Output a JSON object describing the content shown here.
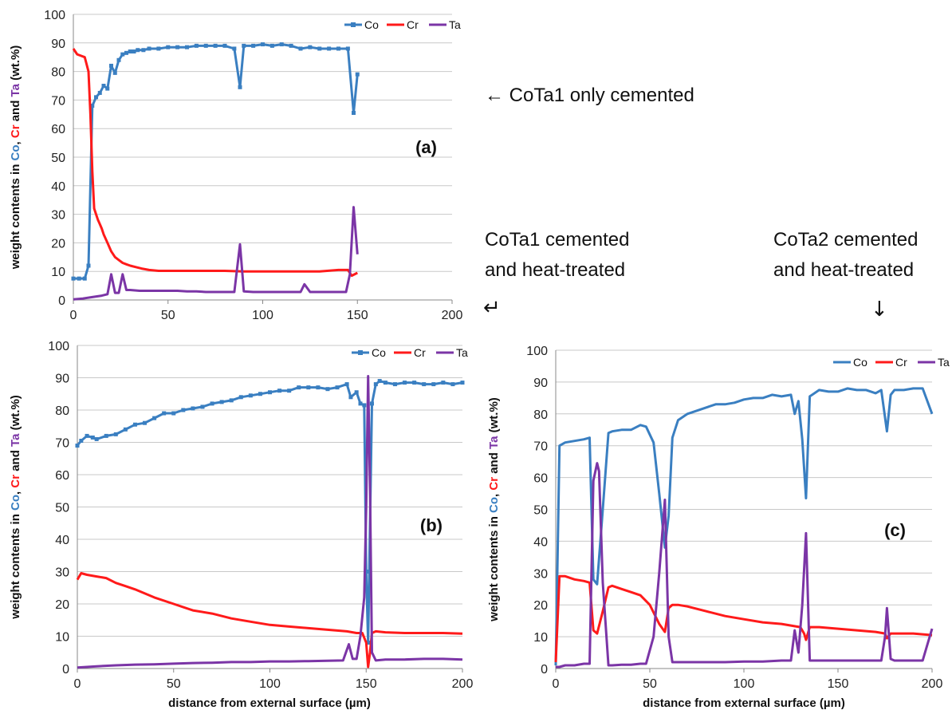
{
  "annotations": {
    "a": "← CoTa1 only cemented",
    "b_line1": "CoTa1 cemented",
    "b_line2": "and heat-treated",
    "b_arrow": "↵",
    "c_line1": "CoTa2 cemented",
    "c_line2": "and heat-treated",
    "c_arrow": "↓"
  },
  "colors": {
    "Co": "#3a7fc1",
    "Cr": "#ff1a1a",
    "Ta": "#7b35a6",
    "grid": "#c8c8c8",
    "axis": "#888888"
  },
  "chart_data": [
    {
      "type": "line",
      "panel_label": "(a)",
      "ylabel_parts": [
        {
          "text": "weight contents in ",
          "color": "#111111"
        },
        {
          "text": "Co",
          "color": "#3a7fc1"
        },
        {
          "text": ", ",
          "color": "#111111"
        },
        {
          "text": "Cr",
          "color": "#ff1a1a"
        },
        {
          "text": " and ",
          "color": "#111111"
        },
        {
          "text": "Ta",
          "color": "#7b35a6"
        },
        {
          "text": " (wt.%)",
          "color": "#111111"
        }
      ],
      "xlabel": "",
      "xlim": [
        0,
        200
      ],
      "ylim": [
        0,
        100
      ],
      "xticks": [
        "0",
        "50",
        "100",
        "150",
        "200"
      ],
      "yticks": [
        "0",
        "10",
        "20",
        "30",
        "40",
        "50",
        "60",
        "70",
        "80",
        "90",
        "100"
      ],
      "grid": true,
      "legend": "top-right",
      "series": [
        {
          "name": "Co",
          "markers": true,
          "x": [
            0,
            3,
            6,
            8,
            10,
            12,
            14,
            16,
            18,
            20,
            22,
            24,
            26,
            28,
            30,
            32,
            34,
            37,
            40,
            45,
            50,
            55,
            60,
            65,
            70,
            75,
            80,
            85,
            88,
            90,
            95,
            100,
            105,
            110,
            115,
            120,
            125,
            130,
            135,
            140,
            145,
            148,
            150
          ],
          "y": [
            7.5,
            7.5,
            7.5,
            12,
            68,
            71,
            72.5,
            75,
            74,
            82,
            79.5,
            84,
            86,
            86.5,
            87,
            87,
            87.5,
            87.5,
            88,
            88,
            88.5,
            88.5,
            88.5,
            89,
            89,
            89,
            89,
            88,
            74.5,
            89,
            89,
            89.5,
            89,
            89.5,
            89,
            88,
            88.5,
            88,
            88,
            88,
            88,
            65.5,
            79
          ]
        },
        {
          "name": "Cr",
          "markers": false,
          "x": [
            0,
            2,
            4,
            6,
            8,
            9,
            10,
            11,
            12,
            13,
            14,
            15,
            16,
            18,
            20,
            22,
            24,
            26,
            28,
            30,
            33,
            36,
            40,
            45,
            50,
            60,
            70,
            80,
            90,
            100,
            110,
            120,
            130,
            140,
            145,
            147,
            150
          ],
          "y": [
            88,
            86,
            85.5,
            85,
            80,
            65,
            45,
            32,
            30,
            28,
            26.5,
            25,
            23,
            20,
            17,
            15,
            14,
            13,
            12.5,
            12,
            11.5,
            11,
            10.5,
            10.2,
            10.2,
            10.2,
            10.2,
            10.2,
            10,
            10,
            10,
            10,
            10,
            10.5,
            10.5,
            8.5,
            9.5
          ]
        },
        {
          "name": "Ta",
          "markers": false,
          "x": [
            0,
            5,
            10,
            15,
            18,
            20,
            22,
            24,
            26,
            28,
            30,
            35,
            40,
            45,
            50,
            55,
            60,
            65,
            70,
            75,
            80,
            85,
            88,
            90,
            95,
            100,
            105,
            110,
            115,
            120,
            122,
            125,
            130,
            135,
            140,
            144,
            146,
            148,
            150
          ],
          "y": [
            0.2,
            0.5,
            1,
            1.5,
            2,
            9,
            2.5,
            2.5,
            9,
            3.5,
            3.5,
            3.2,
            3.2,
            3.2,
            3.2,
            3.2,
            3,
            3,
            2.8,
            2.8,
            2.8,
            2.8,
            19.5,
            3,
            2.8,
            2.8,
            2.8,
            2.8,
            2.8,
            2.8,
            5.5,
            2.8,
            2.8,
            2.8,
            2.8,
            2.8,
            9,
            32.5,
            16
          ]
        }
      ]
    },
    {
      "type": "line",
      "panel_label": "(b)",
      "ylabel_parts": [
        {
          "text": "weight contents in ",
          "color": "#111111"
        },
        {
          "text": "Co",
          "color": "#3a7fc1"
        },
        {
          "text": ", ",
          "color": "#111111"
        },
        {
          "text": "Cr",
          "color": "#ff1a1a"
        },
        {
          "text": " and ",
          "color": "#111111"
        },
        {
          "text": "Ta",
          "color": "#7b35a6"
        },
        {
          "text": " (wt.%)",
          "color": "#111111"
        }
      ],
      "xlabel": "distance from external surface (µm)",
      "xlim": [
        0,
        200
      ],
      "ylim": [
        0,
        100
      ],
      "xticks": [
        "0",
        "50",
        "100",
        "150",
        "200"
      ],
      "yticks": [
        "0",
        "10",
        "20",
        "30",
        "40",
        "50",
        "60",
        "70",
        "80",
        "90",
        "100"
      ],
      "grid": true,
      "legend": "top-right",
      "series": [
        {
          "name": "Co",
          "markers": true,
          "x": [
            0,
            2,
            5,
            8,
            10,
            15,
            20,
            25,
            30,
            35,
            40,
            45,
            50,
            55,
            60,
            65,
            70,
            75,
            80,
            85,
            90,
            95,
            100,
            105,
            110,
            115,
            120,
            125,
            130,
            135,
            140,
            142,
            145,
            147,
            149,
            150,
            151,
            153,
            155,
            157,
            160,
            165,
            170,
            175,
            180,
            185,
            190,
            195,
            200
          ],
          "y": [
            69,
            70.5,
            72,
            71.5,
            71,
            72,
            72.5,
            74,
            75.5,
            76,
            77.5,
            79,
            79,
            80,
            80.5,
            81,
            82,
            82.5,
            83,
            84,
            84.5,
            85,
            85.5,
            86,
            86,
            87,
            87,
            87,
            86.5,
            87,
            88,
            84,
            85.5,
            82,
            81.5,
            30,
            8,
            82,
            88,
            89,
            88.5,
            88,
            88.5,
            88.5,
            88,
            88,
            88.5,
            88,
            88.5
          ]
        },
        {
          "name": "Cr",
          "markers": false,
          "x": [
            0,
            2,
            5,
            10,
            15,
            20,
            25,
            30,
            40,
            50,
            60,
            70,
            80,
            90,
            100,
            110,
            120,
            130,
            140,
            145,
            148,
            150,
            151,
            152,
            153,
            155,
            160,
            170,
            180,
            190,
            200
          ],
          "y": [
            27.5,
            29.5,
            29,
            28.5,
            28,
            26.5,
            25.5,
            24.5,
            22,
            20,
            18,
            17,
            15.5,
            14.5,
            13.5,
            13,
            12.5,
            12,
            11.5,
            11,
            11,
            8,
            0.5,
            5,
            11,
            11.5,
            11.2,
            11,
            11,
            11,
            10.8
          ]
        },
        {
          "name": "Ta",
          "markers": false,
          "x": [
            0,
            5,
            10,
            20,
            30,
            40,
            50,
            60,
            70,
            80,
            90,
            100,
            110,
            120,
            130,
            138,
            141,
            143,
            145,
            147,
            149,
            150,
            151,
            152,
            153,
            155,
            160,
            170,
            180,
            190,
            200
          ],
          "y": [
            0.3,
            0.5,
            0.7,
            1,
            1.2,
            1.3,
            1.5,
            1.7,
            1.8,
            2,
            2,
            2.2,
            2.2,
            2.3,
            2.4,
            2.5,
            7.5,
            3,
            3,
            10,
            22,
            50,
            90.5,
            55,
            5,
            2.5,
            2.8,
            2.8,
            3,
            3,
            2.8
          ]
        }
      ]
    },
    {
      "type": "line",
      "panel_label": "(c)",
      "ylabel_parts": [
        {
          "text": "weight contents in ",
          "color": "#111111"
        },
        {
          "text": "Co",
          "color": "#3a7fc1"
        },
        {
          "text": ", ",
          "color": "#111111"
        },
        {
          "text": "Cr",
          "color": "#ff1a1a"
        },
        {
          "text": " and ",
          "color": "#111111"
        },
        {
          "text": "Ta",
          "color": "#7b35a6"
        },
        {
          "text": " (wt.%)",
          "color": "#111111"
        }
      ],
      "xlabel": "distance from external surface (µm)",
      "xlim": [
        0,
        200
      ],
      "ylim": [
        0,
        100
      ],
      "xticks": [
        "0",
        "50",
        "100",
        "150",
        "200"
      ],
      "yticks": [
        "0",
        "10",
        "20",
        "30",
        "40",
        "50",
        "60",
        "70",
        "80",
        "90",
        "100"
      ],
      "grid": true,
      "legend": "top-right",
      "series": [
        {
          "name": "Co",
          "markers": false,
          "x": [
            0,
            2,
            5,
            10,
            15,
            18,
            20,
            22,
            25,
            28,
            30,
            35,
            40,
            45,
            48,
            52,
            55,
            58,
            60,
            62,
            65,
            70,
            75,
            80,
            85,
            90,
            95,
            100,
            105,
            110,
            115,
            120,
            125,
            127,
            129,
            131,
            133,
            135,
            140,
            145,
            150,
            155,
            160,
            165,
            170,
            173,
            176,
            178,
            180,
            185,
            190,
            195,
            200
          ],
          "y": [
            1,
            70,
            71,
            71.5,
            72,
            72.5,
            28,
            26.5,
            50,
            74,
            74.5,
            75,
            75,
            76.5,
            76,
            71,
            55,
            38,
            48,
            72.5,
            78,
            80,
            81,
            82,
            83,
            83,
            83.5,
            84.5,
            85,
            85,
            86,
            85.5,
            86,
            80,
            84,
            72,
            53.5,
            85.5,
            87.5,
            87,
            87,
            88,
            87.5,
            87.5,
            86.5,
            87.5,
            74.5,
            86,
            87.5,
            87.5,
            88,
            88,
            80
          ]
        },
        {
          "name": "Cr",
          "markers": false,
          "x": [
            0,
            2,
            5,
            10,
            15,
            18,
            20,
            22,
            25,
            28,
            30,
            35,
            40,
            45,
            50,
            55,
            58,
            60,
            62,
            65,
            70,
            80,
            90,
            100,
            110,
            120,
            125,
            130,
            132,
            133,
            135,
            140,
            150,
            160,
            170,
            175,
            176,
            178,
            180,
            190,
            200
          ],
          "y": [
            2,
            29,
            29,
            28,
            27.5,
            27,
            12,
            11,
            18,
            25.5,
            26,
            25,
            24,
            23,
            20,
            14,
            11.5,
            19,
            20,
            20,
            19.5,
            18,
            16.5,
            15.5,
            14.5,
            14,
            13.5,
            13,
            11,
            9,
            13,
            13,
            12.5,
            12,
            11.5,
            11,
            9.5,
            11,
            11,
            11,
            10.5
          ]
        },
        {
          "name": "Ta",
          "markers": false,
          "x": [
            0,
            2,
            5,
            10,
            15,
            18,
            20,
            22,
            23,
            25,
            28,
            30,
            35,
            40,
            45,
            48,
            52,
            55,
            58,
            60,
            62,
            65,
            70,
            80,
            90,
            100,
            110,
            120,
            125,
            127,
            129,
            131,
            133,
            135,
            140,
            150,
            160,
            170,
            173,
            175,
            176,
            178,
            180,
            190,
            195,
            200
          ],
          "y": [
            0.5,
            0.5,
            1,
            1,
            1.5,
            1.5,
            59,
            64.5,
            62,
            27,
            1,
            1,
            1.2,
            1.2,
            1.5,
            1.5,
            10,
            30,
            53,
            10,
            2,
            2,
            2,
            2,
            2,
            2.2,
            2.2,
            2.5,
            2.5,
            12,
            5,
            20,
            42.5,
            2.5,
            2.5,
            2.5,
            2.5,
            2.5,
            2.5,
            10,
            19,
            3,
            2.5,
            2.5,
            2.5,
            12.5
          ]
        }
      ]
    }
  ]
}
